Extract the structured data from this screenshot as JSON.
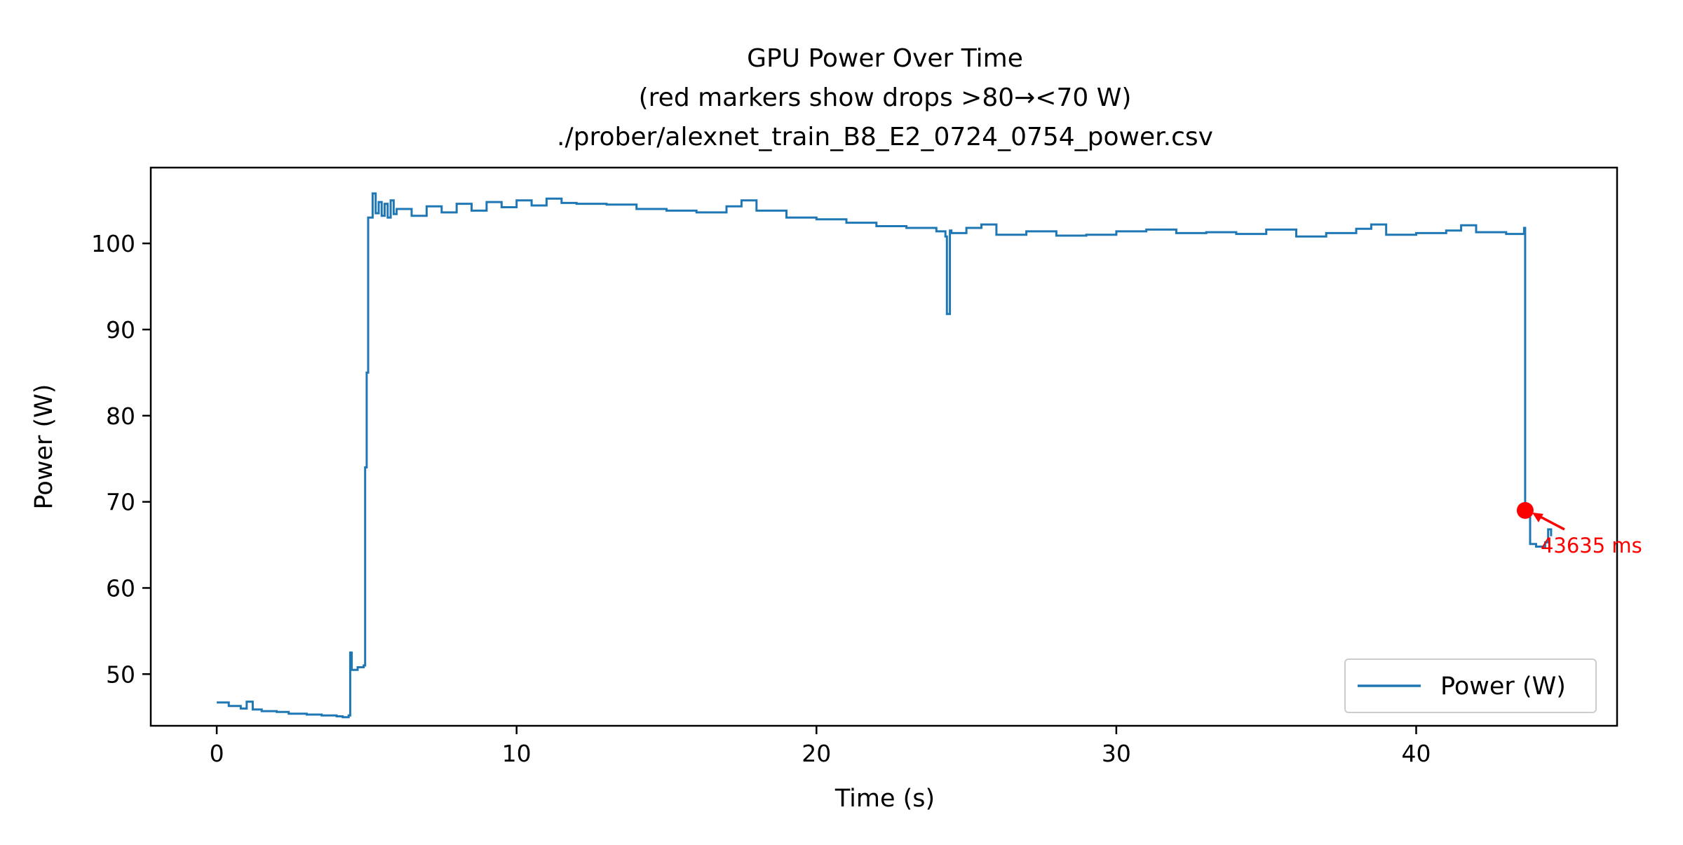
{
  "chart_data": {
    "type": "line",
    "title": [
      "GPU Power Over Time",
      "(red markers show drops >80→<70 W)",
      "./prober/alexnet_train_B8_E2_0724_0754_power.csv"
    ],
    "xlabel": "Time (s)",
    "ylabel": "Power (W)",
    "xlim": [
      -2.2,
      46.7
    ],
    "ylim": [
      44.0,
      108.8
    ],
    "xticks": [
      0,
      10,
      20,
      30,
      40
    ],
    "yticks": [
      50,
      60,
      70,
      80,
      90,
      100
    ],
    "grid": false,
    "legend": {
      "location": "lower right",
      "entries": [
        "Power (W)"
      ]
    },
    "series": [
      {
        "name": "Power (W)",
        "color": "#1f77b4",
        "drawstyle": "steps-post",
        "x": [
          0.0,
          0.4,
          0.8,
          1.0,
          1.2,
          1.5,
          2.0,
          2.4,
          3.0,
          3.5,
          4.0,
          4.2,
          4.4,
          4.45,
          4.5,
          4.7,
          4.9,
          4.95,
          5.0,
          5.05,
          5.2,
          5.3,
          5.4,
          5.5,
          5.6,
          5.7,
          5.8,
          5.9,
          6.0,
          6.5,
          7.0,
          7.5,
          8.0,
          8.5,
          9.0,
          9.5,
          10.0,
          10.5,
          11.0,
          11.5,
          12.0,
          13.0,
          14.0,
          15.0,
          16.0,
          17.0,
          17.5,
          18.0,
          19.0,
          20.0,
          21.0,
          22.0,
          23.0,
          24.0,
          24.3,
          24.35,
          24.45,
          24.5,
          25.0,
          25.5,
          26.0,
          27.0,
          28.0,
          29.0,
          30.0,
          31.0,
          32.0,
          33.0,
          34.0,
          35.0,
          36.0,
          37.0,
          38.0,
          38.5,
          39.0,
          40.0,
          41.0,
          41.5,
          42.0,
          43.0,
          43.6,
          43.635,
          43.8,
          44.0,
          44.3,
          44.4,
          44.5
        ],
        "y": [
          46.7,
          46.3,
          46.0,
          46.8,
          45.9,
          45.7,
          45.6,
          45.4,
          45.3,
          45.2,
          45.1,
          45.0,
          45.2,
          52.5,
          50.5,
          50.8,
          51.0,
          74.0,
          85.0,
          103.0,
          105.8,
          103.5,
          104.8,
          103.2,
          104.6,
          103.0,
          105.0,
          103.4,
          104.0,
          103.2,
          104.3,
          103.6,
          104.6,
          103.8,
          104.8,
          104.2,
          105.0,
          104.4,
          105.2,
          104.7,
          104.6,
          104.5,
          104.0,
          103.8,
          103.6,
          104.3,
          105.0,
          103.8,
          103.0,
          102.8,
          102.4,
          102.0,
          101.8,
          101.4,
          100.8,
          91.8,
          101.5,
          101.2,
          101.8,
          102.2,
          101.0,
          101.4,
          100.9,
          101.0,
          101.4,
          101.6,
          101.2,
          101.3,
          101.1,
          101.6,
          100.8,
          101.2,
          101.7,
          102.2,
          101.0,
          101.2,
          101.5,
          102.1,
          101.3,
          101.1,
          101.8,
          69.0,
          65.1,
          64.8,
          65.3,
          66.8,
          66.0
        ]
      }
    ],
    "markers": [
      {
        "x": 43.635,
        "y": 69.0,
        "color": "#ff0000",
        "label": "43635 ms"
      }
    ]
  }
}
